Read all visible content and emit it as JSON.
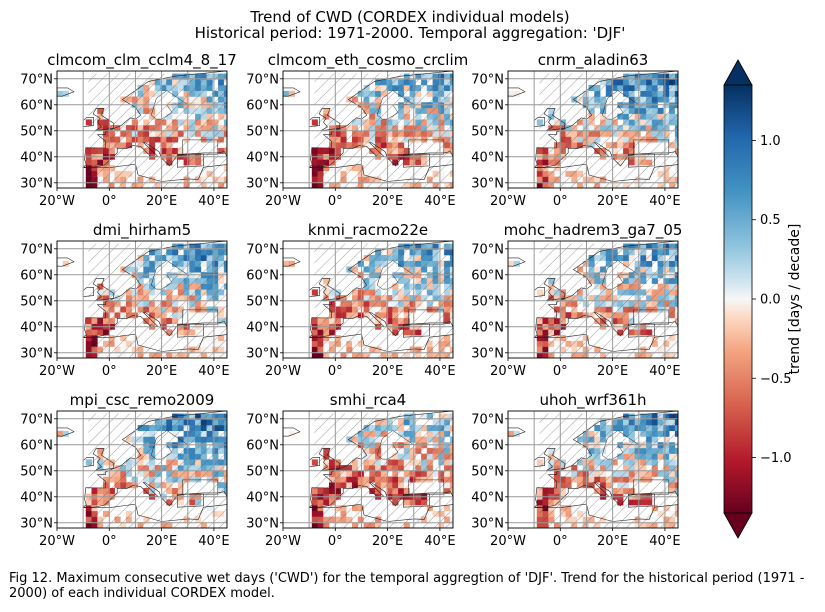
{
  "figure": {
    "title_line1": "Trend of CWD (CORDEX individual models)",
    "title_line2": "Historical period: 1971-2000. Temporal aggregation: 'DJF'",
    "caption": "Fig 12. Maximum consecutive wet days ('CWD') for the temporal aggregtion of 'DJF'. Trend for the historical period (1971 - 2000) of each individual CORDEX model."
  },
  "chart_data": {
    "type": "heatmap",
    "map_extent": {
      "lon": [
        -20,
        45
      ],
      "lat": [
        28,
        73
      ]
    },
    "x_ticks": [
      "20°W",
      "0°",
      "20°E",
      "40°E"
    ],
    "x_tick_values": [
      -20,
      0,
      20,
      40
    ],
    "y_ticks": [
      "30°N",
      "40°N",
      "50°N",
      "60°N",
      "70°N"
    ],
    "y_tick_values": [
      30,
      40,
      50,
      60,
      70
    ],
    "grid": true,
    "hatching": "non-significant areas hatched",
    "panels": [
      {
        "name": "clmcom_clm_cclm4_8_17",
        "north": 0.5,
        "east": 0.4,
        "south": -1.0,
        "west": -0.9
      },
      {
        "name": "clmcom_eth_cosmo_crclim",
        "north": 0.6,
        "east": 0.5,
        "south": -1.1,
        "west": -1.0
      },
      {
        "name": "cnrm_aladin63",
        "north": 0.8,
        "east": 0.6,
        "south": -0.9,
        "west": -0.8
      },
      {
        "name": "dmi_hirham5",
        "north": 0.7,
        "east": 0.6,
        "south": -1.0,
        "west": -1.0
      },
      {
        "name": "knmi_racmo22e",
        "north": 0.6,
        "east": 0.4,
        "south": -1.0,
        "west": -0.9
      },
      {
        "name": "mohc_hadrem3_ga7_05",
        "north": 0.5,
        "east": 0.7,
        "south": -0.9,
        "west": -0.8
      },
      {
        "name": "mpi_csc_remo2009",
        "north": 0.7,
        "east": 0.8,
        "south": -0.8,
        "west": -0.9
      },
      {
        "name": "smhi_rca4",
        "north": 0.4,
        "east": 0.3,
        "south": -1.1,
        "west": -0.9
      },
      {
        "name": "uhoh_wrf361h",
        "north": 0.7,
        "east": 0.5,
        "south": -1.0,
        "west": -0.9
      }
    ],
    "colorbar": {
      "label": "trend [days / decade]",
      "range": [
        -1.35,
        1.35
      ],
      "ticks": [
        -1.0,
        -0.5,
        0.0,
        0.5,
        1.0
      ],
      "tick_labels": [
        "−1.0",
        "−0.5",
        "0.0",
        "0.5",
        "1.0"
      ],
      "colormap": "RdBu",
      "extend": "both"
    },
    "colors": {
      "strong_neg": "#67001f",
      "neg": "#d6604d",
      "zero": "#f7f7f7",
      "pos": "#4393c3",
      "strong_pos": "#053061"
    }
  }
}
